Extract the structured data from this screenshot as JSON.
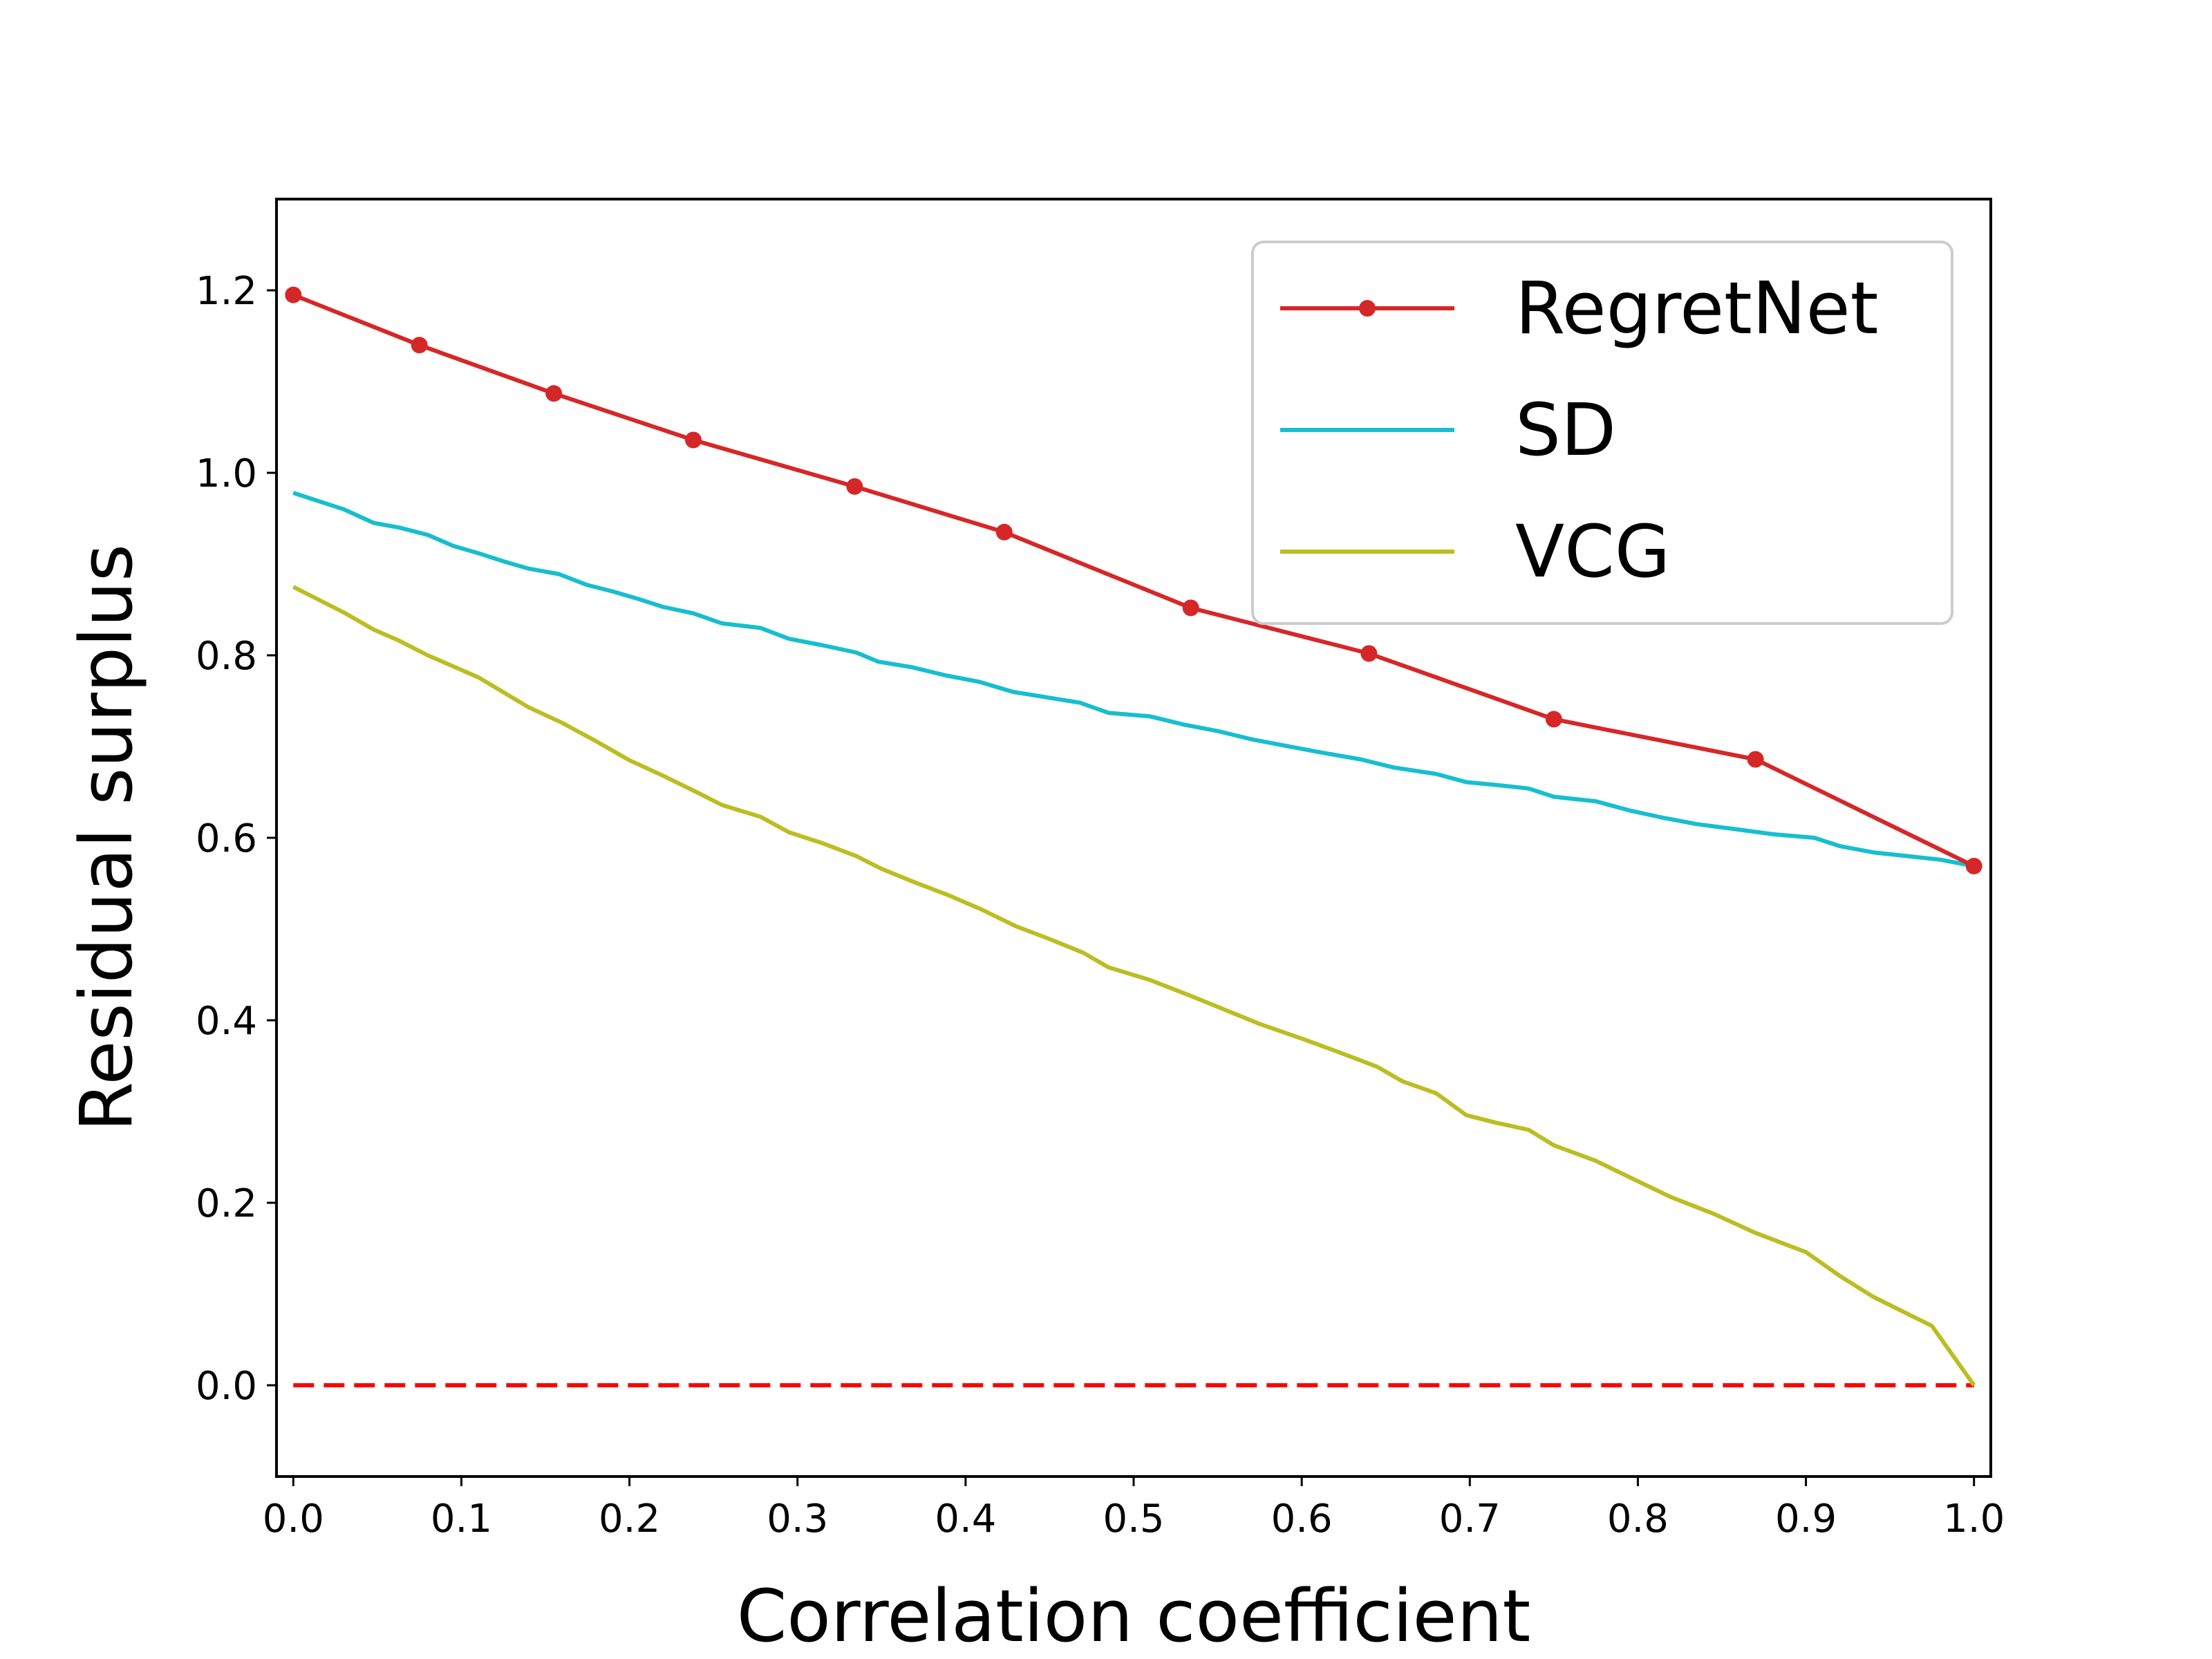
{
  "chart_data": {
    "type": "line",
    "title": "",
    "xlabel": "Correlation coefficient",
    "ylabel": "Residual surplus",
    "xlim": [
      -0.01,
      1.01
    ],
    "ylim": [
      -0.1,
      1.3
    ],
    "xticks": [
      0.0,
      0.1,
      0.2,
      0.3,
      0.4,
      0.5,
      0.6,
      0.7,
      0.8,
      0.9,
      1.0
    ],
    "xtick_labels": [
      "0.0",
      "0.1",
      "0.2",
      "0.3",
      "0.4",
      "0.5",
      "0.6",
      "0.7",
      "0.8",
      "0.9",
      "1.0"
    ],
    "yticks": [
      0.0,
      0.2,
      0.4,
      0.6,
      0.8,
      1.0,
      1.2
    ],
    "ytick_labels": [
      "0.0",
      "0.2",
      "0.4",
      "0.6",
      "0.8",
      "1.0",
      "1.2"
    ],
    "grid": false,
    "legend_position": "top-right",
    "series": [
      {
        "name": "RegretNet",
        "color": "#d62728",
        "marker": "circle",
        "points": [
          [
            0.0,
            1.195
          ],
          [
            0.075,
            1.14
          ],
          [
            0.155,
            1.087
          ],
          [
            0.238,
            1.036
          ],
          [
            0.334,
            0.985
          ],
          [
            0.423,
            0.935
          ],
          [
            0.534,
            0.852
          ],
          [
            0.64,
            0.802
          ],
          [
            0.75,
            0.73
          ],
          [
            0.87,
            0.686
          ],
          [
            1.0,
            0.569
          ]
        ]
      },
      {
        "name": "SD",
        "color": "#17becf",
        "marker": "none",
        "points": [
          [
            0.0,
            0.978
          ],
          [
            0.03,
            0.96
          ],
          [
            0.048,
            0.945
          ],
          [
            0.063,
            0.94
          ],
          [
            0.08,
            0.932
          ],
          [
            0.095,
            0.92
          ],
          [
            0.11,
            0.912
          ],
          [
            0.125,
            0.903
          ],
          [
            0.14,
            0.895
          ],
          [
            0.158,
            0.889
          ],
          [
            0.175,
            0.877
          ],
          [
            0.19,
            0.87
          ],
          [
            0.205,
            0.862
          ],
          [
            0.22,
            0.853
          ],
          [
            0.238,
            0.846
          ],
          [
            0.255,
            0.835
          ],
          [
            0.278,
            0.83
          ],
          [
            0.295,
            0.818
          ],
          [
            0.315,
            0.811
          ],
          [
            0.335,
            0.803
          ],
          [
            0.348,
            0.793
          ],
          [
            0.368,
            0.787
          ],
          [
            0.388,
            0.778
          ],
          [
            0.408,
            0.771
          ],
          [
            0.428,
            0.76
          ],
          [
            0.448,
            0.754
          ],
          [
            0.468,
            0.748
          ],
          [
            0.485,
            0.737
          ],
          [
            0.51,
            0.733
          ],
          [
            0.53,
            0.724
          ],
          [
            0.55,
            0.717
          ],
          [
            0.57,
            0.708
          ],
          [
            0.59,
            0.701
          ],
          [
            0.61,
            0.694
          ],
          [
            0.635,
            0.686
          ],
          [
            0.655,
            0.677
          ],
          [
            0.68,
            0.67
          ],
          [
            0.698,
            0.661
          ],
          [
            0.715,
            0.658
          ],
          [
            0.735,
            0.654
          ],
          [
            0.75,
            0.645
          ],
          [
            0.775,
            0.64
          ],
          [
            0.795,
            0.63
          ],
          [
            0.815,
            0.622
          ],
          [
            0.835,
            0.615
          ],
          [
            0.86,
            0.609
          ],
          [
            0.88,
            0.604
          ],
          [
            0.905,
            0.6
          ],
          [
            0.92,
            0.591
          ],
          [
            0.94,
            0.584
          ],
          [
            0.96,
            0.58
          ],
          [
            0.98,
            0.576
          ],
          [
            1.0,
            0.569
          ]
        ]
      },
      {
        "name": "VCG",
        "color": "#bcbd22",
        "marker": "none",
        "points": [
          [
            0.0,
            0.875
          ],
          [
            0.03,
            0.847
          ],
          [
            0.048,
            0.828
          ],
          [
            0.063,
            0.816
          ],
          [
            0.08,
            0.8
          ],
          [
            0.11,
            0.776
          ],
          [
            0.14,
            0.743
          ],
          [
            0.16,
            0.726
          ],
          [
            0.18,
            0.706
          ],
          [
            0.2,
            0.685
          ],
          [
            0.22,
            0.668
          ],
          [
            0.24,
            0.65
          ],
          [
            0.255,
            0.636
          ],
          [
            0.278,
            0.623
          ],
          [
            0.295,
            0.606
          ],
          [
            0.315,
            0.594
          ],
          [
            0.335,
            0.58
          ],
          [
            0.35,
            0.566
          ],
          [
            0.37,
            0.551
          ],
          [
            0.39,
            0.537
          ],
          [
            0.41,
            0.521
          ],
          [
            0.43,
            0.503
          ],
          [
            0.45,
            0.489
          ],
          [
            0.47,
            0.474
          ],
          [
            0.485,
            0.458
          ],
          [
            0.51,
            0.444
          ],
          [
            0.535,
            0.426
          ],
          [
            0.555,
            0.411
          ],
          [
            0.575,
            0.396
          ],
          [
            0.6,
            0.38
          ],
          [
            0.625,
            0.363
          ],
          [
            0.645,
            0.349
          ],
          [
            0.66,
            0.333
          ],
          [
            0.68,
            0.32
          ],
          [
            0.698,
            0.296
          ],
          [
            0.715,
            0.288
          ],
          [
            0.735,
            0.28
          ],
          [
            0.75,
            0.263
          ],
          [
            0.775,
            0.246
          ],
          [
            0.795,
            0.228
          ],
          [
            0.82,
            0.206
          ],
          [
            0.845,
            0.188
          ],
          [
            0.87,
            0.167
          ],
          [
            0.9,
            0.146
          ],
          [
            0.92,
            0.12
          ],
          [
            0.94,
            0.097
          ],
          [
            0.975,
            0.065
          ],
          [
            1.0,
            0.0
          ]
        ]
      }
    ],
    "reference_line": {
      "y": 0.0,
      "color": "#ff0000",
      "style": "dashed"
    }
  }
}
